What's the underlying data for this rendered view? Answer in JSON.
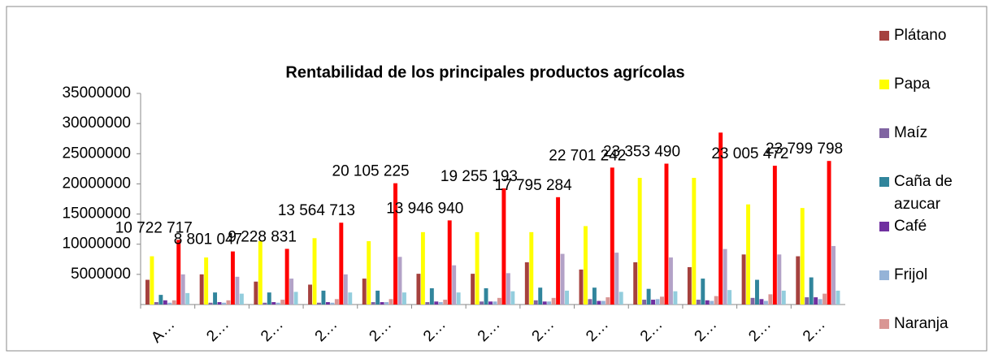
{
  "chart_data": {
    "type": "bar",
    "title": "Rentabilidad de los principales productos agrícolas",
    "categories": [
      "A…",
      "2…",
      "2…",
      "2…",
      "2…",
      "2…",
      "2…",
      "2…",
      "2…",
      "2…",
      "2…",
      "2…",
      "2…"
    ],
    "ylim": [
      0,
      35000000
    ],
    "yticks": [
      5000000,
      10000000,
      15000000,
      20000000,
      25000000,
      30000000,
      35000000
    ],
    "grid": false,
    "legend": "right",
    "series": [
      {
        "name": "Plátano",
        "color": "#a5413e",
        "values": [
          4100000,
          5000000,
          3800000,
          3300000,
          4300000,
          5100000,
          5100000,
          7000000,
          5800000,
          7000000,
          6200000,
          8300000,
          8000000
        ]
      },
      {
        "name": "Papa",
        "color": "#ffff00",
        "values": [
          8000000,
          7800000,
          10500000,
          11000000,
          10500000,
          12000000,
          12000000,
          12000000,
          13000000,
          21000000,
          21000000,
          16600000,
          16000000
        ]
      },
      {
        "name": "Maíz",
        "color": "#8064a2",
        "values": [
          400000,
          300000,
          300000,
          300000,
          400000,
          400000,
          500000,
          700000,
          900000,
          800000,
          800000,
          1100000,
          1200000
        ]
      },
      {
        "name": "Caña de azucar",
        "color": "#31859c",
        "values": [
          1600000,
          2000000,
          2000000,
          2300000,
          2300000,
          2700000,
          2700000,
          2800000,
          2800000,
          2600000,
          4300000,
          4100000,
          4500000
        ]
      },
      {
        "name": "Café",
        "color": "#7030a0",
        "values": [
          700000,
          400000,
          400000,
          400000,
          400000,
          500000,
          500000,
          500000,
          600000,
          800000,
          700000,
          900000,
          1200000
        ]
      },
      {
        "name": "Frijol",
        "color": "#95b3d7",
        "values": [
          300000,
          300000,
          300000,
          300000,
          400000,
          400000,
          500000,
          500000,
          600000,
          900000,
          600000,
          600000,
          900000
        ]
      },
      {
        "name": "Naranja",
        "color": "#d99694",
        "values": [
          700000,
          700000,
          800000,
          900000,
          900000,
          800000,
          1100000,
          1100000,
          1200000,
          1300000,
          1400000,
          1700000,
          1800000
        ]
      },
      {
        "color": "#ff0000",
        "values": [
          10722717,
          8801047,
          9228831,
          13564713,
          20105225,
          13946940,
          19255193,
          17795284,
          22701242,
          23353490,
          28500000,
          23005472,
          23799798
        ],
        "value_labels": [
          "10 722 717",
          "8 801 047",
          "9 228 831",
          "13 564 713",
          "20 105 225",
          "13 946 940",
          "19 255 193",
          "17 795 284",
          "22 701 242",
          "23 353 490",
          null,
          "23 005 472",
          "23 799 798"
        ]
      },
      {
        "color": "#b3a2c7",
        "values": [
          5000000,
          4600000,
          4300000,
          5000000,
          7900000,
          6500000,
          5200000,
          8400000,
          8600000,
          7800000,
          9200000,
          8300000,
          9700000
        ]
      },
      {
        "color": "#93cddd",
        "values": [
          1900000,
          1800000,
          2100000,
          2000000,
          2000000,
          2000000,
          2200000,
          2300000,
          2100000,
          2200000,
          2400000,
          2300000,
          2300000
        ]
      }
    ]
  }
}
